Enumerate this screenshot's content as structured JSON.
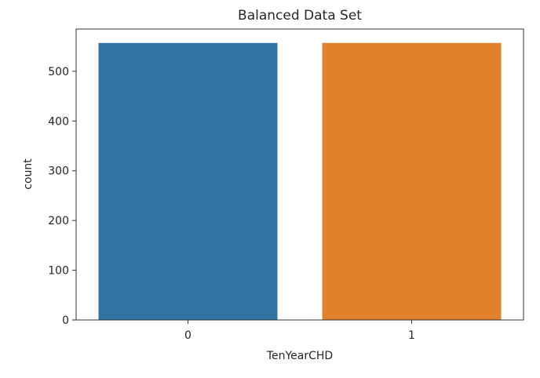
{
  "chart_data": {
    "type": "bar",
    "title": "Balanced Data Set",
    "xlabel": "TenYearCHD",
    "ylabel": "count",
    "categories": [
      "0",
      "1"
    ],
    "values": [
      557,
      557
    ],
    "colors": [
      "#3274a1",
      "#e1812c"
    ],
    "ylim": [
      0,
      585
    ],
    "yticks": [
      0,
      100,
      200,
      300,
      400,
      500
    ],
    "grid": false
  }
}
